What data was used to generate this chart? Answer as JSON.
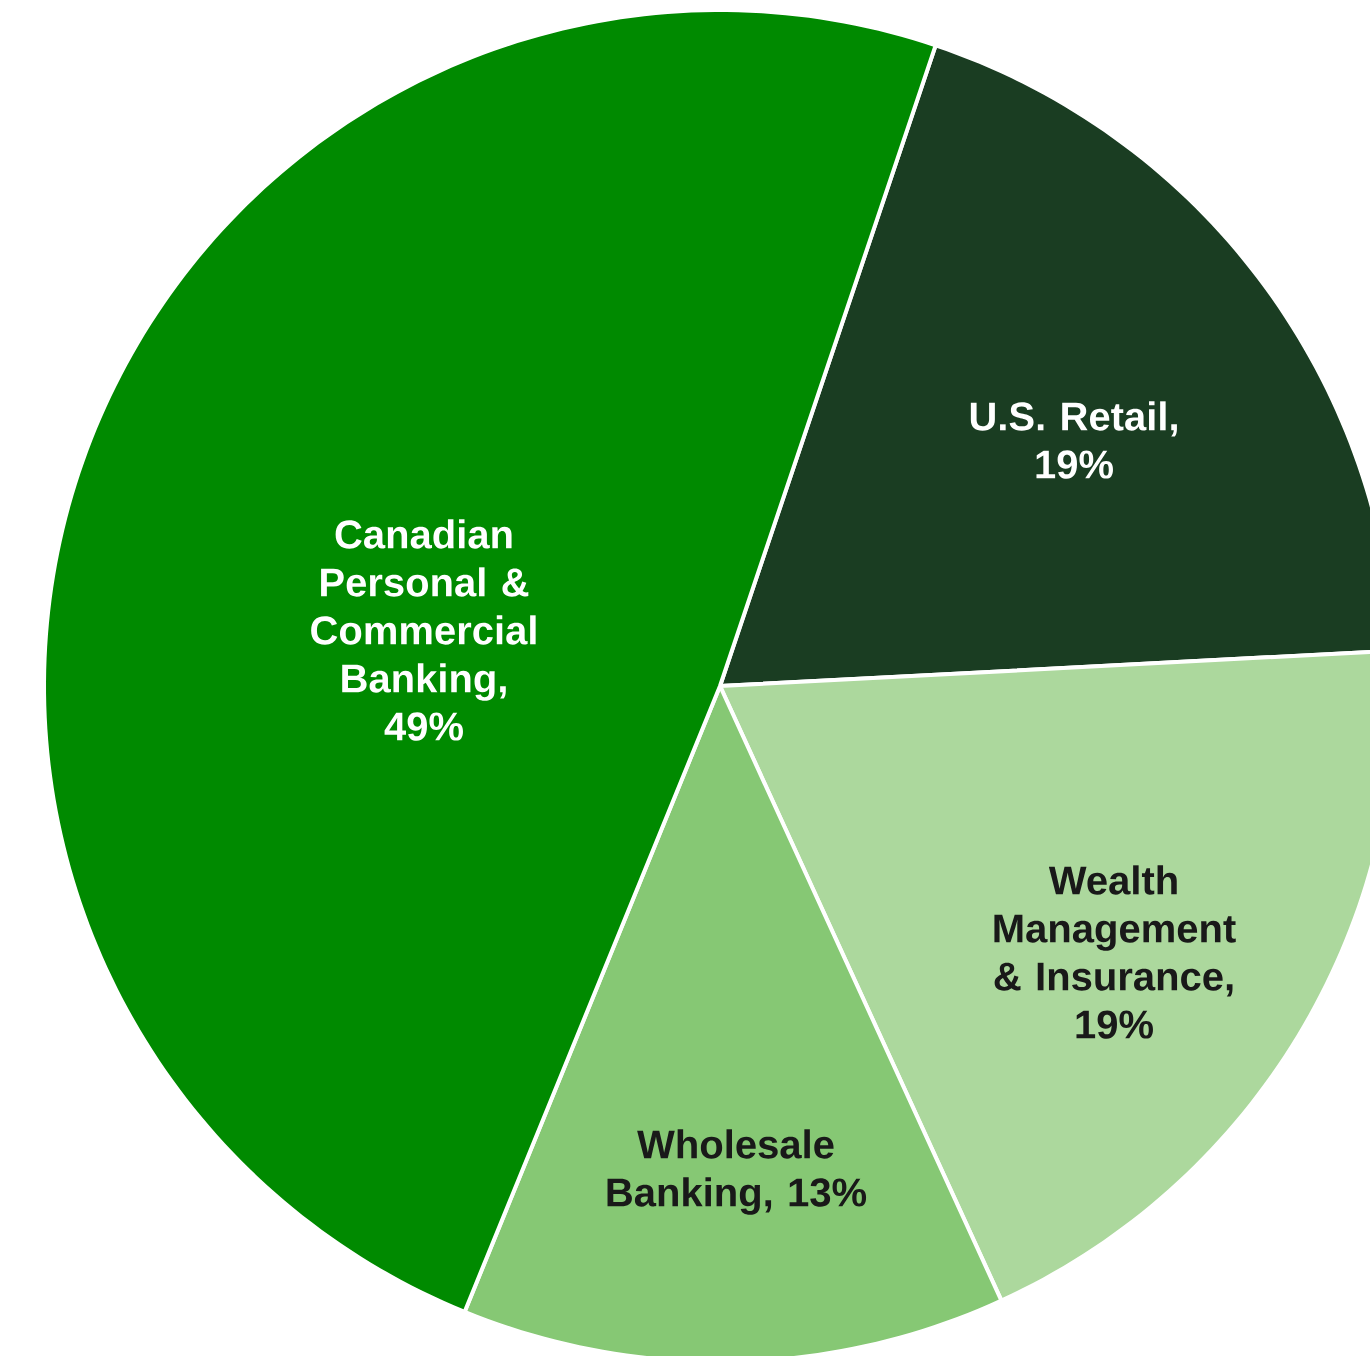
{
  "chart_data": {
    "type": "pie",
    "categories": [
      "U.S. Retail",
      "Wealth Management & Insurance",
      "Wholesale Banking",
      "Canadian Personal & Commercial Banking"
    ],
    "values": [
      19,
      19,
      13,
      49
    ],
    "value_labels": [
      ", 19%",
      ", 19%",
      ", 13%",
      ", 49%"
    ],
    "colors": [
      "#1a3d22",
      "#acd89d",
      "#86c874",
      "#008a00"
    ]
  }
}
